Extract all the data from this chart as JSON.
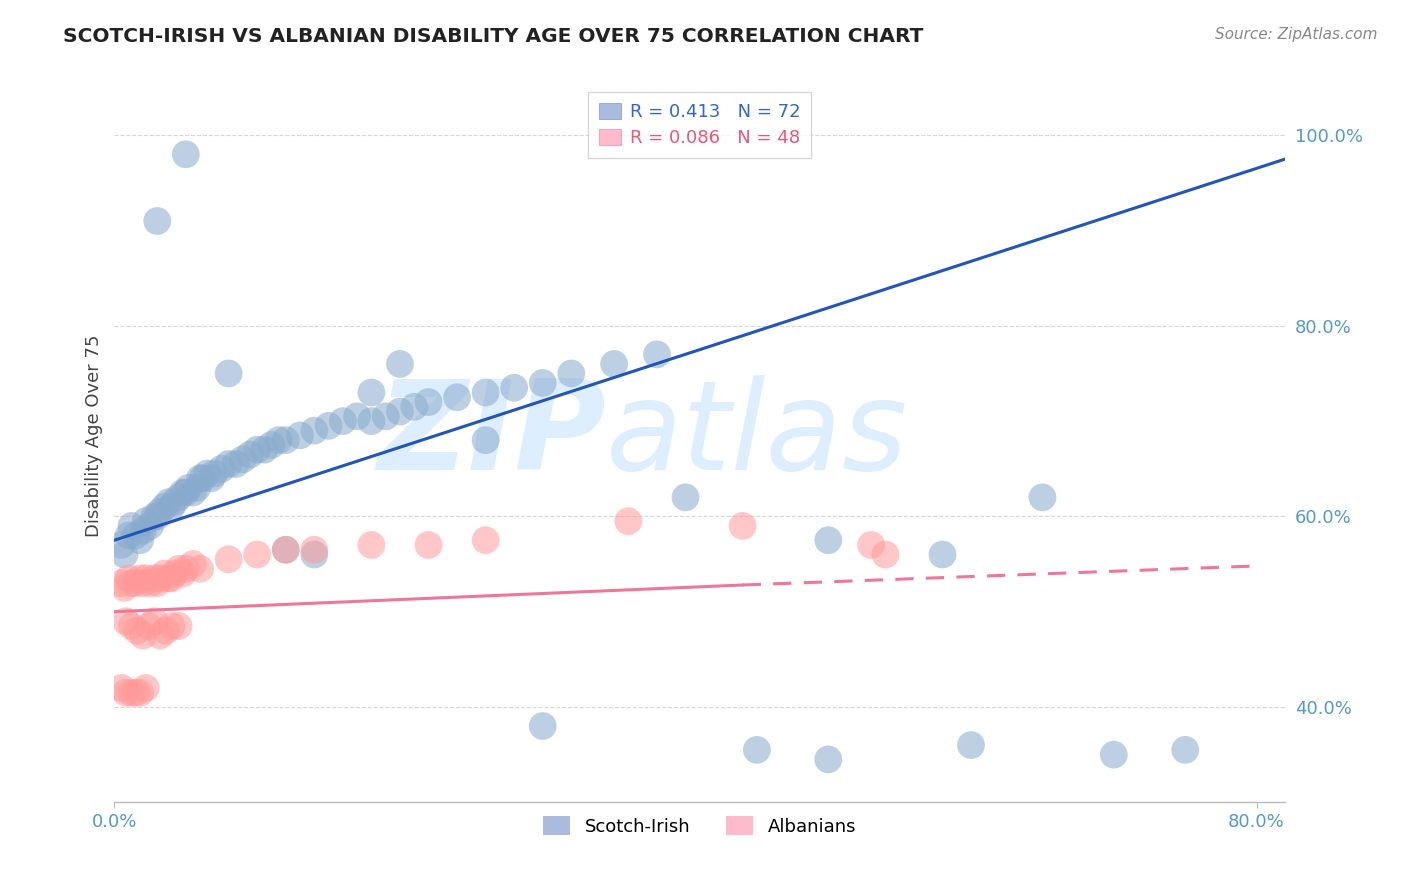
{
  "title": "SCOTCH-IRISH VS ALBANIAN DISABILITY AGE OVER 75 CORRELATION CHART",
  "source": "Source: ZipAtlas.com",
  "ylabel": "Disability Age Over 75",
  "xlim": [
    0.0,
    0.82
  ],
  "ylim": [
    0.3,
    1.07
  ],
  "xtick_positions": [
    0.0,
    0.8
  ],
  "xticklabels": [
    "0.0%",
    "80.0%"
  ],
  "ytick_positions": [
    0.4,
    0.6,
    0.8,
    1.0
  ],
  "yticklabels": [
    "40.0%",
    "60.0%",
    "80.0%",
    "100.0%"
  ],
  "legend_blue_R": "R = 0.413",
  "legend_blue_N": "N = 72",
  "legend_pink_R": "R = 0.086",
  "legend_pink_N": "N = 48",
  "scotch_irish_x": [
    0.005,
    0.007,
    0.01,
    0.012,
    0.015,
    0.018,
    0.02,
    0.022,
    0.025,
    0.028,
    0.03,
    0.032,
    0.035,
    0.038,
    0.04,
    0.042,
    0.045,
    0.048,
    0.05,
    0.052,
    0.055,
    0.058,
    0.06,
    0.062,
    0.065,
    0.068,
    0.07,
    0.075,
    0.08,
    0.085,
    0.09,
    0.095,
    0.1,
    0.105,
    0.11,
    0.115,
    0.12,
    0.13,
    0.14,
    0.15,
    0.16,
    0.17,
    0.18,
    0.19,
    0.2,
    0.21,
    0.22,
    0.24,
    0.26,
    0.28,
    0.3,
    0.32,
    0.35,
    0.38,
    0.12,
    0.14,
    0.3,
    0.45,
    0.5,
    0.6,
    0.7,
    0.75,
    0.26,
    0.4,
    0.5,
    0.65,
    0.58,
    0.2,
    0.18,
    0.08,
    0.05,
    0.03
  ],
  "scotch_irish_y": [
    0.57,
    0.56,
    0.58,
    0.59,
    0.58,
    0.575,
    0.585,
    0.595,
    0.59,
    0.6,
    0.6,
    0.605,
    0.61,
    0.615,
    0.61,
    0.615,
    0.62,
    0.625,
    0.625,
    0.63,
    0.625,
    0.63,
    0.64,
    0.64,
    0.645,
    0.64,
    0.645,
    0.65,
    0.655,
    0.655,
    0.66,
    0.665,
    0.67,
    0.67,
    0.675,
    0.68,
    0.68,
    0.685,
    0.69,
    0.695,
    0.7,
    0.705,
    0.7,
    0.705,
    0.71,
    0.715,
    0.72,
    0.725,
    0.73,
    0.735,
    0.74,
    0.75,
    0.76,
    0.77,
    0.565,
    0.56,
    0.38,
    0.355,
    0.345,
    0.36,
    0.35,
    0.355,
    0.68,
    0.62,
    0.575,
    0.62,
    0.56,
    0.76,
    0.73,
    0.75,
    0.98,
    0.91
  ],
  "albanian_x": [
    0.005,
    0.007,
    0.01,
    0.012,
    0.015,
    0.018,
    0.02,
    0.022,
    0.025,
    0.028,
    0.03,
    0.032,
    0.035,
    0.038,
    0.04,
    0.042,
    0.045,
    0.048,
    0.05,
    0.055,
    0.008,
    0.012,
    0.016,
    0.02,
    0.024,
    0.028,
    0.032,
    0.036,
    0.04,
    0.045,
    0.005,
    0.008,
    0.012,
    0.015,
    0.018,
    0.022,
    0.06,
    0.08,
    0.1,
    0.12,
    0.14,
    0.18,
    0.22,
    0.26,
    0.36,
    0.44,
    0.53,
    0.54
  ],
  "albanian_y": [
    0.53,
    0.525,
    0.535,
    0.53,
    0.53,
    0.535,
    0.53,
    0.535,
    0.53,
    0.535,
    0.53,
    0.535,
    0.54,
    0.535,
    0.535,
    0.54,
    0.545,
    0.54,
    0.545,
    0.55,
    0.49,
    0.485,
    0.48,
    0.475,
    0.485,
    0.49,
    0.475,
    0.48,
    0.485,
    0.485,
    0.42,
    0.415,
    0.415,
    0.415,
    0.415,
    0.42,
    0.545,
    0.555,
    0.56,
    0.565,
    0.565,
    0.57,
    0.57,
    0.575,
    0.595,
    0.59,
    0.57,
    0.56
  ],
  "blue_color": "#88AACC",
  "pink_color": "#FF9999",
  "blue_line_color": "#2255BB",
  "pink_line_solid_color": "#EE7799",
  "pink_line_dash_color": "#EE7799",
  "background_color": "#FFFFFF",
  "grid_color": "#CCCCCC",
  "watermark_color": "#DDEEFF"
}
